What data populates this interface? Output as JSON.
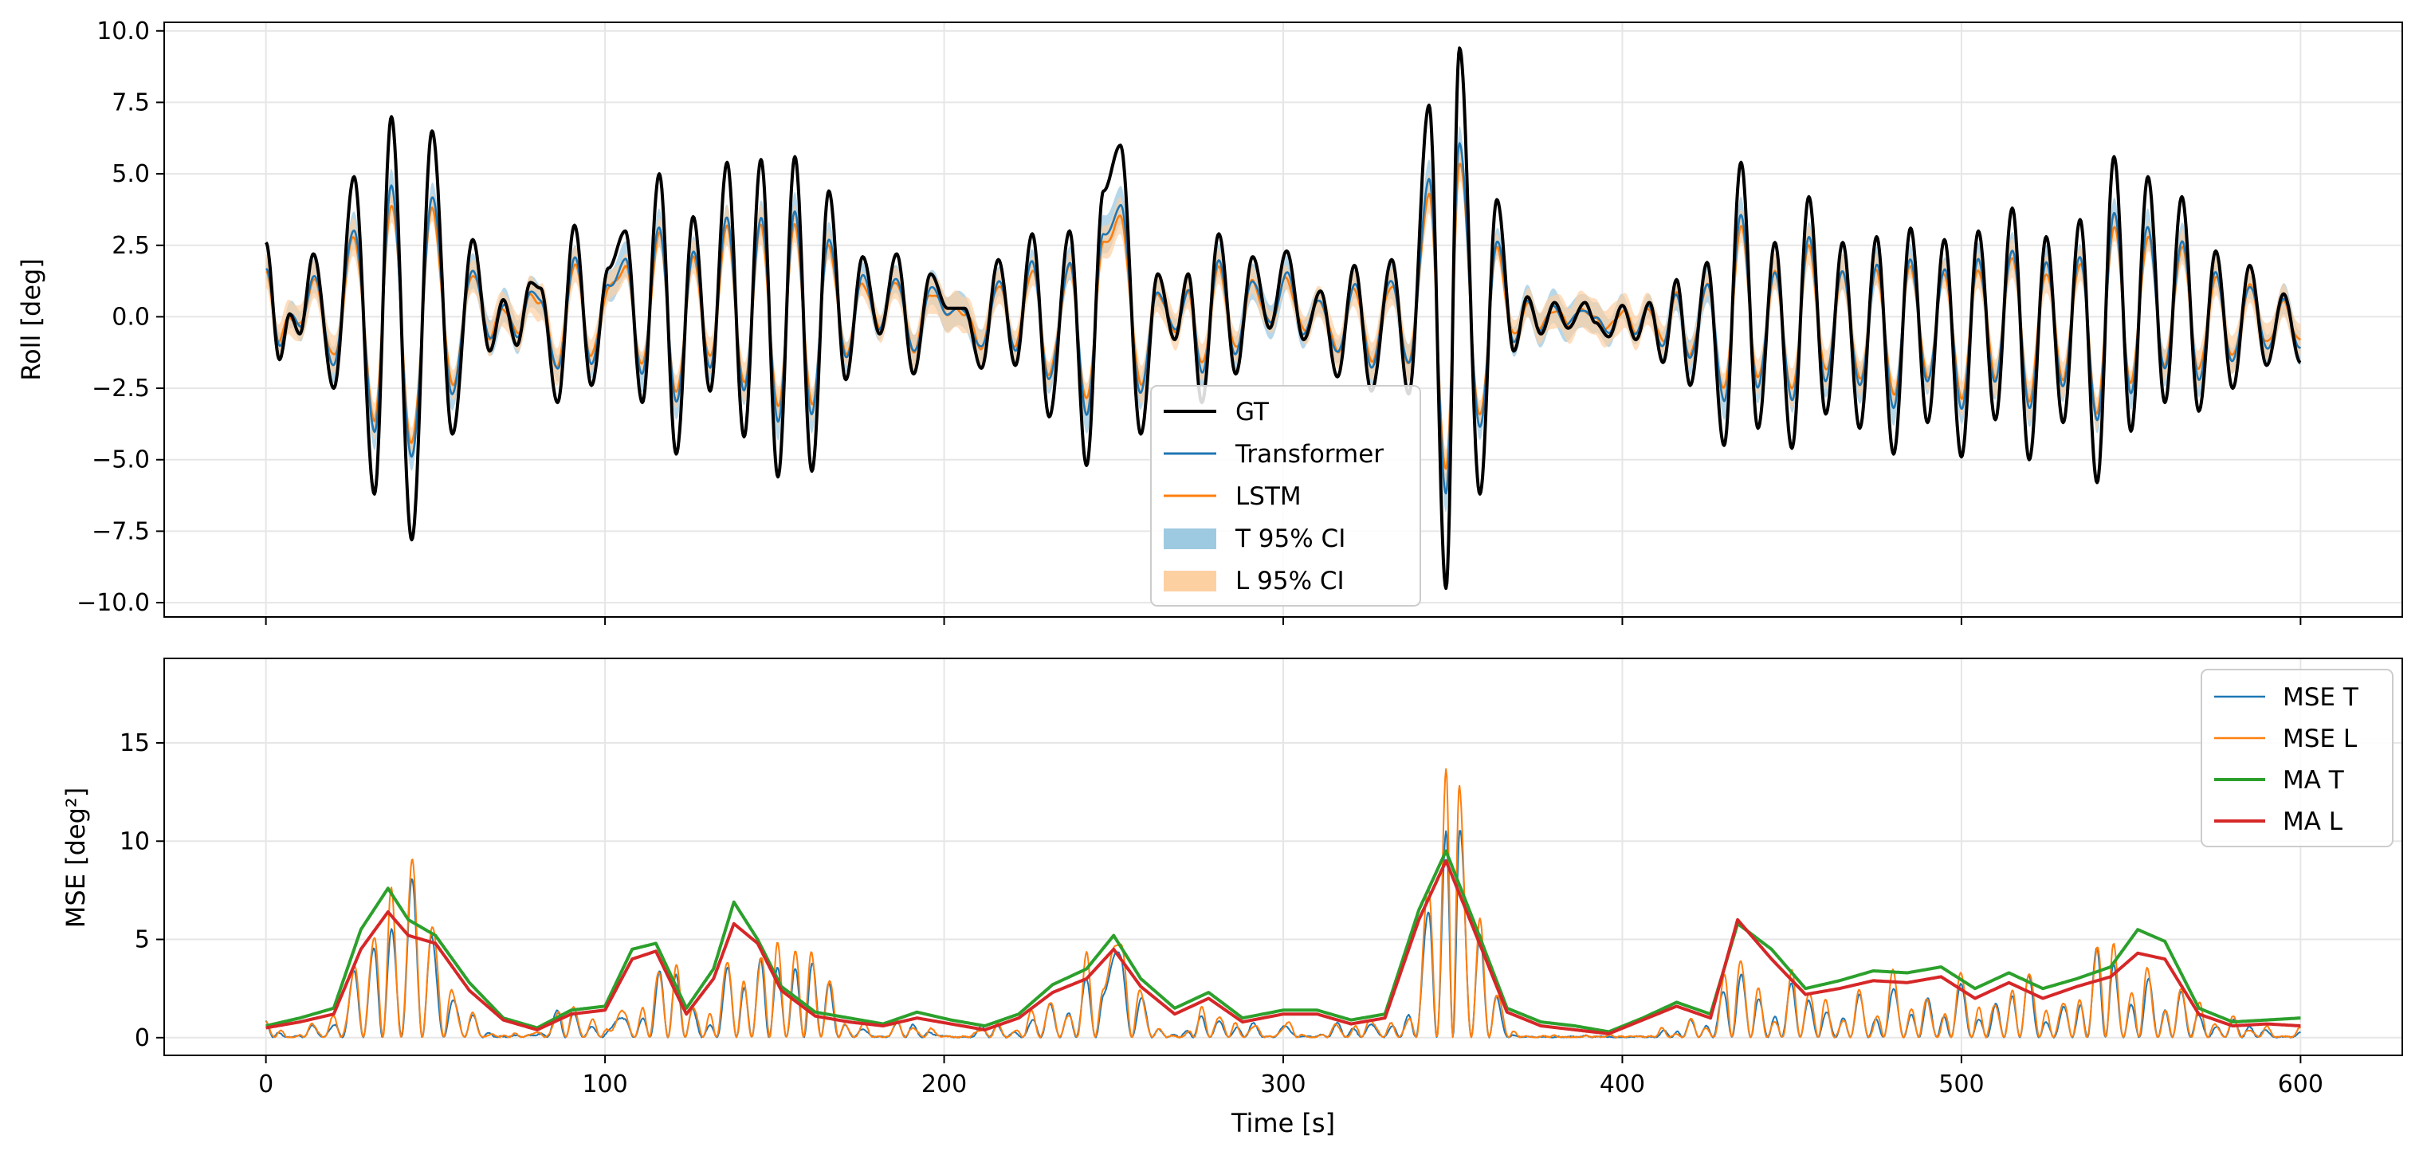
{
  "colors": {
    "gt": "#000000",
    "transformer": "#1f77b4",
    "lstm": "#ff7f0e",
    "t_ci": "#9ecae1",
    "l_ci": "#fdd0a2",
    "ma_t": "#2ca02c",
    "ma_l": "#d62728",
    "grid": "#e6e6e6"
  },
  "chart_data": [
    {
      "type": "line",
      "title": "",
      "xlabel": "",
      "ylabel": "Roll [deg]",
      "xlim": [
        -30,
        630
      ],
      "ylim": [
        -10.5,
        10.3
      ],
      "x_ticks": [
        0,
        100,
        200,
        300,
        400,
        500,
        600
      ],
      "y_ticks": [
        -10.0,
        -7.5,
        -5.0,
        -2.5,
        0.0,
        2.5,
        5.0,
        7.5,
        10.0
      ],
      "y_tick_labels": [
        "−10.0",
        "−7.5",
        "−5.0",
        "−2.5",
        "0.0",
        "2.5",
        "5.0",
        "7.5",
        "10.0"
      ],
      "x_tick_labels_visible": false,
      "grid": true,
      "legend_position": "bottom-center",
      "x_range": [
        0,
        600
      ],
      "legend": [
        {
          "label": "GT",
          "kind": "line",
          "color_key": "gt"
        },
        {
          "label": "Transformer",
          "kind": "line",
          "color_key": "transformer"
        },
        {
          "label": "LSTM",
          "kind": "line",
          "color_key": "lstm"
        },
        {
          "label": "T 95% CI",
          "kind": "band",
          "color_key": "t_ci"
        },
        {
          "label": "L 95% CI",
          "kind": "band",
          "color_key": "l_ci"
        }
      ],
      "gt_peaks": [
        [
          0,
          2.6
        ],
        [
          4,
          -1.5
        ],
        [
          7,
          0.1
        ],
        [
          10,
          -0.6
        ],
        [
          14,
          2.2
        ],
        [
          20,
          -2.5
        ],
        [
          26,
          4.9
        ],
        [
          32,
          -6.2
        ],
        [
          37,
          7.0
        ],
        [
          43,
          -7.8
        ],
        [
          49,
          6.5
        ],
        [
          55,
          -4.1
        ],
        [
          61,
          2.7
        ],
        [
          66,
          -1.2
        ],
        [
          70,
          0.6
        ],
        [
          74,
          -1.0
        ],
        [
          78,
          1.2
        ],
        [
          81,
          1.0
        ],
        [
          86,
          -3.0
        ],
        [
          91,
          3.2
        ],
        [
          96,
          -2.4
        ],
        [
          101,
          1.7
        ],
        [
          106,
          3.0
        ],
        [
          111,
          -3.0
        ],
        [
          116,
          5.0
        ],
        [
          121,
          -4.8
        ],
        [
          126,
          3.5
        ],
        [
          131,
          -2.6
        ],
        [
          136,
          5.4
        ],
        [
          141,
          -4.2
        ],
        [
          146,
          5.5
        ],
        [
          151,
          -5.6
        ],
        [
          156,
          5.6
        ],
        [
          161,
          -5.4
        ],
        [
          166,
          4.4
        ],
        [
          171,
          -2.2
        ],
        [
          176,
          2.1
        ],
        [
          181,
          -0.6
        ],
        [
          186,
          2.2
        ],
        [
          191,
          -2.0
        ],
        [
          196,
          1.5
        ],
        [
          201,
          0.3
        ],
        [
          206,
          0.3
        ],
        [
          211,
          -1.8
        ],
        [
          216,
          2.0
        ],
        [
          221,
          -1.7
        ],
        [
          226,
          2.9
        ],
        [
          231,
          -3.5
        ],
        [
          237,
          3.0
        ],
        [
          242,
          -5.2
        ],
        [
          247,
          4.4
        ],
        [
          252,
          6.0
        ],
        [
          258,
          -4.1
        ],
        [
          263,
          1.5
        ],
        [
          268,
          -0.8
        ],
        [
          272,
          1.5
        ],
        [
          276,
          -3.0
        ],
        [
          281,
          2.9
        ],
        [
          286,
          -2.0
        ],
        [
          291,
          2.1
        ],
        [
          296,
          -0.4
        ],
        [
          301,
          2.3
        ],
        [
          306,
          -0.8
        ],
        [
          311,
          0.9
        ],
        [
          316,
          -2.1
        ],
        [
          321,
          1.8
        ],
        [
          326,
          -2.6
        ],
        [
          332,
          2.0
        ],
        [
          337,
          -2.7
        ],
        [
          343,
          7.4
        ],
        [
          348,
          -9.5
        ],
        [
          352,
          9.4
        ],
        [
          358,
          -6.2
        ],
        [
          363,
          4.1
        ],
        [
          368,
          -1.2
        ],
        [
          372,
          0.7
        ],
        [
          376,
          -0.6
        ],
        [
          380,
          0.5
        ],
        [
          384,
          -0.4
        ],
        [
          389,
          0.5
        ],
        [
          392,
          -0.2
        ],
        [
          396,
          -0.7
        ],
        [
          400,
          0.4
        ],
        [
          404,
          -0.8
        ],
        [
          408,
          0.5
        ],
        [
          412,
          -1.6
        ],
        [
          416,
          1.3
        ],
        [
          420,
          -2.4
        ],
        [
          425,
          1.9
        ],
        [
          430,
          -4.5
        ],
        [
          435,
          5.4
        ],
        [
          440,
          -3.9
        ],
        [
          445,
          2.6
        ],
        [
          450,
          -4.6
        ],
        [
          455,
          4.2
        ],
        [
          460,
          -3.4
        ],
        [
          465,
          2.6
        ],
        [
          470,
          -3.9
        ],
        [
          475,
          2.8
        ],
        [
          480,
          -4.8
        ],
        [
          485,
          3.1
        ],
        [
          490,
          -3.7
        ],
        [
          495,
          2.7
        ],
        [
          500,
          -4.9
        ],
        [
          505,
          3.0
        ],
        [
          510,
          -3.6
        ],
        [
          515,
          3.8
        ],
        [
          520,
          -5.0
        ],
        [
          525,
          2.8
        ],
        [
          530,
          -3.7
        ],
        [
          535,
          3.4
        ],
        [
          540,
          -5.8
        ],
        [
          545,
          5.6
        ],
        [
          550,
          -4.0
        ],
        [
          555,
          4.9
        ],
        [
          560,
          -3.0
        ],
        [
          565,
          4.2
        ],
        [
          570,
          -3.3
        ],
        [
          575,
          2.3
        ],
        [
          580,
          -2.5
        ],
        [
          585,
          1.8
        ],
        [
          590,
          -1.7
        ],
        [
          595,
          0.8
        ],
        [
          600,
          -1.6
        ]
      ]
    },
    {
      "type": "line",
      "title": "",
      "xlabel": "Time [s]",
      "ylabel": "MSE [deg²]",
      "xlim": [
        -30,
        630
      ],
      "ylim": [
        -0.9,
        19.3
      ],
      "x_ticks": [
        0,
        100,
        200,
        300,
        400,
        500,
        600
      ],
      "x_tick_labels": [
        "0",
        "100",
        "200",
        "300",
        "400",
        "500",
        "600"
      ],
      "y_ticks": [
        0,
        5,
        10,
        15
      ],
      "y_tick_labels": [
        "0",
        "5",
        "10",
        "15"
      ],
      "grid": true,
      "legend_position": "top-right",
      "x_range": [
        0,
        600
      ],
      "legend": [
        {
          "label": "MSE T",
          "color_key": "transformer"
        },
        {
          "label": "MSE L",
          "color_key": "lstm"
        },
        {
          "label": "MA T",
          "color_key": "ma_t"
        },
        {
          "label": "MA L",
          "color_key": "ma_l"
        }
      ],
      "ma_t": [
        [
          0,
          0.6
        ],
        [
          10,
          1.0
        ],
        [
          20,
          1.5
        ],
        [
          28,
          5.5
        ],
        [
          36,
          7.6
        ],
        [
          42,
          6.0
        ],
        [
          50,
          5.2
        ],
        [
          60,
          2.8
        ],
        [
          70,
          1.0
        ],
        [
          80,
          0.5
        ],
        [
          90,
          1.4
        ],
        [
          100,
          1.6
        ],
        [
          108,
          4.5
        ],
        [
          115,
          4.8
        ],
        [
          124,
          1.5
        ],
        [
          132,
          3.5
        ],
        [
          138,
          6.9
        ],
        [
          145,
          5.0
        ],
        [
          152,
          2.6
        ],
        [
          162,
          1.3
        ],
        [
          172,
          1.0
        ],
        [
          182,
          0.7
        ],
        [
          192,
          1.3
        ],
        [
          202,
          0.9
        ],
        [
          212,
          0.6
        ],
        [
          222,
          1.2
        ],
        [
          232,
          2.7
        ],
        [
          242,
          3.5
        ],
        [
          250,
          5.2
        ],
        [
          258,
          3.0
        ],
        [
          268,
          1.5
        ],
        [
          278,
          2.3
        ],
        [
          288,
          1.0
        ],
        [
          300,
          1.4
        ],
        [
          310,
          1.4
        ],
        [
          320,
          0.9
        ],
        [
          330,
          1.2
        ],
        [
          340,
          6.5
        ],
        [
          348,
          9.5
        ],
        [
          356,
          6.0
        ],
        [
          366,
          1.5
        ],
        [
          376,
          0.8
        ],
        [
          386,
          0.6
        ],
        [
          396,
          0.3
        ],
        [
          406,
          1.0
        ],
        [
          416,
          1.8
        ],
        [
          426,
          1.2
        ],
        [
          434,
          5.8
        ],
        [
          444,
          4.5
        ],
        [
          454,
          2.5
        ],
        [
          464,
          2.9
        ],
        [
          474,
          3.4
        ],
        [
          484,
          3.3
        ],
        [
          494,
          3.6
        ],
        [
          504,
          2.5
        ],
        [
          514,
          3.3
        ],
        [
          524,
          2.5
        ],
        [
          534,
          3.0
        ],
        [
          544,
          3.6
        ],
        [
          552,
          5.5
        ],
        [
          560,
          4.9
        ],
        [
          570,
          1.5
        ],
        [
          580,
          0.8
        ],
        [
          590,
          0.9
        ],
        [
          600,
          1.0
        ]
      ],
      "ma_l": [
        [
          0,
          0.5
        ],
        [
          10,
          0.8
        ],
        [
          20,
          1.2
        ],
        [
          28,
          4.5
        ],
        [
          36,
          6.4
        ],
        [
          42,
          5.2
        ],
        [
          50,
          4.8
        ],
        [
          60,
          2.4
        ],
        [
          70,
          0.9
        ],
        [
          80,
          0.4
        ],
        [
          90,
          1.2
        ],
        [
          100,
          1.4
        ],
        [
          108,
          4.0
        ],
        [
          115,
          4.4
        ],
        [
          124,
          1.2
        ],
        [
          132,
          3.0
        ],
        [
          138,
          5.8
        ],
        [
          145,
          4.8
        ],
        [
          152,
          2.4
        ],
        [
          162,
          1.1
        ],
        [
          172,
          0.8
        ],
        [
          182,
          0.6
        ],
        [
          192,
          1.0
        ],
        [
          202,
          0.7
        ],
        [
          212,
          0.4
        ],
        [
          222,
          1.0
        ],
        [
          232,
          2.3
        ],
        [
          242,
          3.0
        ],
        [
          250,
          4.5
        ],
        [
          258,
          2.6
        ],
        [
          268,
          1.2
        ],
        [
          278,
          2.0
        ],
        [
          288,
          0.8
        ],
        [
          300,
          1.2
        ],
        [
          310,
          1.2
        ],
        [
          320,
          0.7
        ],
        [
          330,
          1.0
        ],
        [
          340,
          6.0
        ],
        [
          348,
          9.0
        ],
        [
          356,
          5.6
        ],
        [
          366,
          1.3
        ],
        [
          376,
          0.6
        ],
        [
          386,
          0.4
        ],
        [
          396,
          0.2
        ],
        [
          406,
          0.9
        ],
        [
          416,
          1.6
        ],
        [
          426,
          1.0
        ],
        [
          434,
          6.0
        ],
        [
          444,
          4.0
        ],
        [
          454,
          2.2
        ],
        [
          464,
          2.5
        ],
        [
          474,
          2.9
        ],
        [
          484,
          2.8
        ],
        [
          494,
          3.1
        ],
        [
          504,
          2.0
        ],
        [
          514,
          2.8
        ],
        [
          524,
          2.0
        ],
        [
          534,
          2.6
        ],
        [
          544,
          3.1
        ],
        [
          552,
          4.3
        ],
        [
          560,
          4.0
        ],
        [
          570,
          1.2
        ],
        [
          580,
          0.6
        ],
        [
          590,
          0.7
        ],
        [
          600,
          0.6
        ]
      ]
    }
  ]
}
